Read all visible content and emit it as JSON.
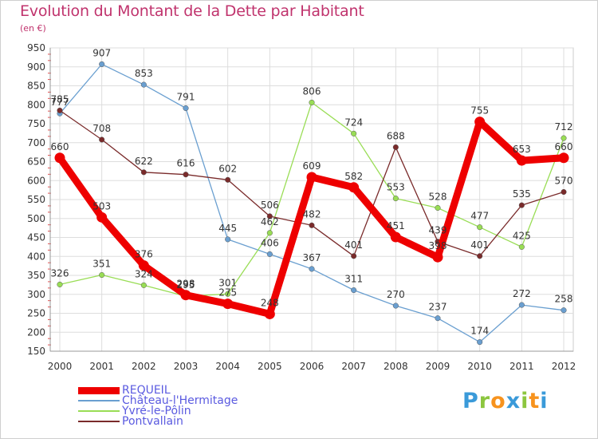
{
  "title": "Evolution du Montant de la Dette par Habitant",
  "subtitle": "(en €)",
  "logo": "Proxiti",
  "logo_letters": [
    {
      "ch": "P",
      "color": "#3a9ad9"
    },
    {
      "ch": "r",
      "color": "#8cc63f"
    },
    {
      "ch": "o",
      "color": "#f7931e"
    },
    {
      "ch": "x",
      "color": "#3a9ad9"
    },
    {
      "ch": "i",
      "color": "#8cc63f"
    },
    {
      "ch": "t",
      "color": "#f7931e"
    },
    {
      "ch": "i",
      "color": "#3a9ad9"
    }
  ],
  "chart_data": {
    "type": "line",
    "title": "Evolution du Montant de la Dette par Habitant",
    "ylabel": "(en €)",
    "xlabel": "",
    "x": [
      "2000",
      "2001",
      "2002",
      "2003",
      "2004",
      "2005",
      "2006",
      "2007",
      "2008",
      "2009",
      "2010",
      "2011",
      "2012"
    ],
    "yticks": [
      150,
      200,
      250,
      300,
      350,
      400,
      450,
      500,
      550,
      600,
      650,
      700,
      750,
      800,
      850,
      900,
      950
    ],
    "ylim": [
      150,
      950
    ],
    "grid": true,
    "legend_position": "bottom-left",
    "series": [
      {
        "name": "REQUEIL",
        "color": "#ee0000",
        "values": [
          660,
          503,
          376,
          298,
          275,
          248,
          609,
          582,
          451,
          398,
          755,
          653,
          660
        ],
        "labels": [
          "660",
          "503",
          "376",
          "298",
          "275",
          "248",
          "609",
          "582",
          "451",
          "398",
          "755",
          "653",
          "660"
        ]
      },
      {
        "name": "Château-l'Hermitage",
        "color": "#6a9fd0",
        "values": [
          777,
          907,
          853,
          791,
          445,
          406,
          367,
          311,
          270,
          237,
          174,
          272,
          258
        ],
        "labels": [
          "777",
          "907",
          "853",
          "791",
          "445",
          "406",
          "367",
          "311",
          "270",
          "237",
          "174",
          "272",
          "258"
        ]
      },
      {
        "name": "Yvré-le-Pôlin",
        "color": "#99dd55",
        "values": [
          326,
          351,
          324,
          295,
          301,
          462,
          806,
          724,
          553,
          528,
          477,
          425,
          712
        ],
        "labels": [
          "326",
          "351",
          "324",
          "295",
          "301",
          "462",
          "806",
          "724",
          "553",
          "528",
          "477",
          "425",
          "712"
        ]
      },
      {
        "name": "Pontvallain",
        "color": "#7a2b2b",
        "values": [
          785,
          708,
          622,
          616,
          602,
          506,
          482,
          401,
          688,
          439,
          401,
          535,
          570
        ],
        "labels": [
          "785",
          "708",
          "622",
          "616",
          "602",
          "506",
          "482",
          "401",
          "688",
          "439",
          "401",
          "535",
          "570"
        ]
      }
    ]
  }
}
